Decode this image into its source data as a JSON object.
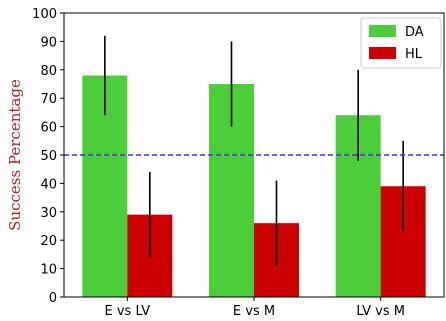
{
  "chart_data": {
    "type": "bar",
    "categories": [
      "E vs LV",
      "E vs M",
      "LV vs M"
    ],
    "series": [
      {
        "name": "DA",
        "values": [
          78,
          75,
          64
        ],
        "error": [
          14,
          15,
          16
        ],
        "color": "#4cce3a"
      },
      {
        "name": "HL",
        "values": [
          29,
          26,
          39
        ],
        "error": [
          15,
          15,
          16
        ],
        "color": "#cc0000"
      }
    ],
    "title": "",
    "xlabel": "",
    "ylabel": "Success Percentage",
    "ylabel_color": "#b22222",
    "ylim": [
      0,
      100
    ],
    "yticks": [
      0,
      10,
      20,
      30,
      40,
      50,
      60,
      70,
      80,
      90,
      100
    ],
    "reference_line": {
      "y": 50,
      "style": "dashed",
      "color": "#5522ee"
    },
    "legend": "top-right",
    "grid": false
  }
}
